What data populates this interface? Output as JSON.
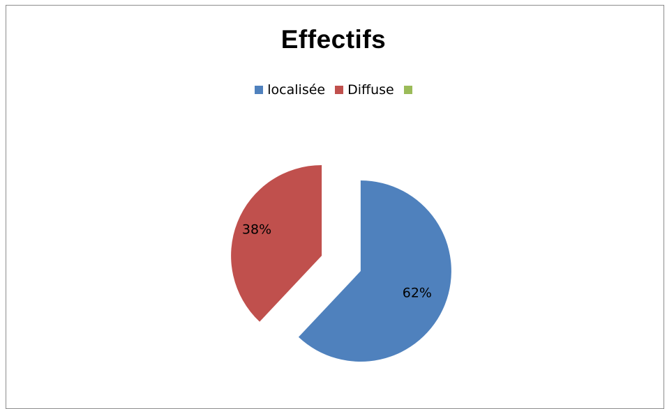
{
  "chart_data": {
    "type": "pie",
    "title": "Effectifs",
    "categories": [
      "localisée",
      "Diffuse",
      ""
    ],
    "values": [
      62,
      38,
      0
    ],
    "data_labels": [
      "62%",
      "38%",
      ""
    ],
    "colors": [
      "#4F81BD",
      "#C0504D",
      "#9BBB59"
    ],
    "legend_position": "top",
    "exploded": true
  }
}
